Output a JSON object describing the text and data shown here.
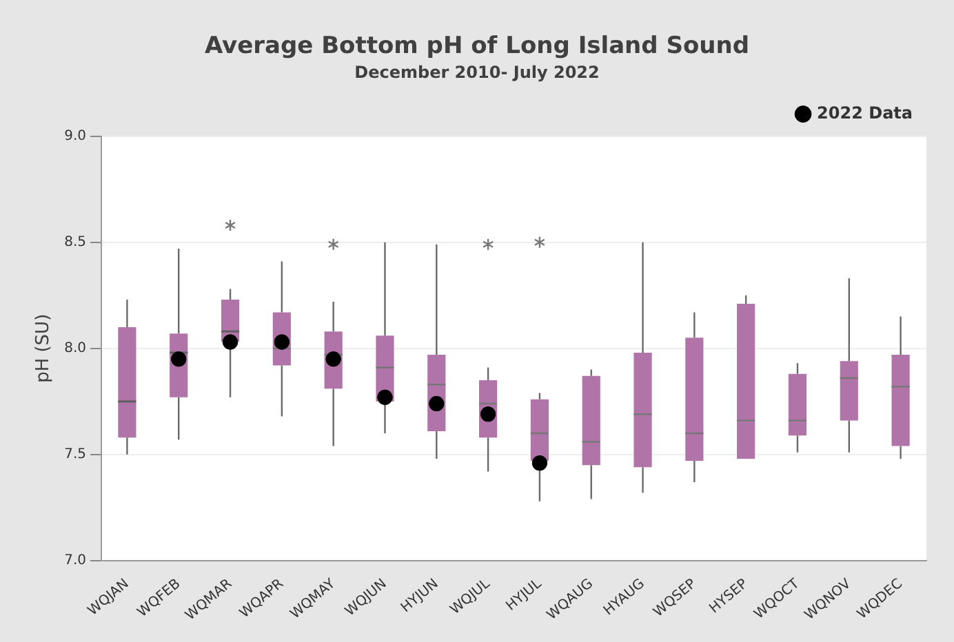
{
  "chart_data": {
    "type": "box",
    "title": "Average Bottom pH of Long Island Sound",
    "subtitle": "December 2010- July 2022",
    "ylabel": "pH (SU)",
    "categories": [
      "WQJAN",
      "WQFEB",
      "WQMAR",
      "WQAPR",
      "WQMAY",
      "WQJUN",
      "HYJUN",
      "WQJUL",
      "HYJUL",
      "WQAUG",
      "HYAUG",
      "WQSEP",
      "HYSEP",
      "WQOCT",
      "WQNOV",
      "WQDEC"
    ],
    "color": "#b074a8",
    "boxes": [
      {
        "low": 7.5,
        "q1": 7.58,
        "median": 7.75,
        "q3": 8.1,
        "high": 8.23
      },
      {
        "low": 7.57,
        "q1": 7.77,
        "median": 7.98,
        "q3": 8.07,
        "high": 8.47
      },
      {
        "low": 7.77,
        "q1": 8.03,
        "median": 8.08,
        "q3": 8.23,
        "high": 8.28,
        "outliers": [
          8.58
        ]
      },
      {
        "low": 7.68,
        "q1": 7.92,
        "median": 8.0,
        "q3": 8.17,
        "high": 8.41
      },
      {
        "low": 7.54,
        "q1": 7.81,
        "median": 7.97,
        "q3": 8.08,
        "high": 8.22,
        "outliers": [
          8.49
        ]
      },
      {
        "low": 7.6,
        "q1": 7.75,
        "median": 7.91,
        "q3": 8.06,
        "high": 8.5
      },
      {
        "low": 7.48,
        "q1": 7.61,
        "median": 7.83,
        "q3": 7.97,
        "high": 8.49
      },
      {
        "low": 7.42,
        "q1": 7.58,
        "median": 7.74,
        "q3": 7.85,
        "high": 7.91,
        "outliers": [
          8.49
        ]
      },
      {
        "low": 7.28,
        "q1": 7.47,
        "median": 7.6,
        "q3": 7.76,
        "high": 7.79,
        "outliers": [
          8.5
        ]
      },
      {
        "low": 7.29,
        "q1": 7.45,
        "median": 7.56,
        "q3": 7.87,
        "high": 7.9
      },
      {
        "low": 7.32,
        "q1": 7.44,
        "median": 7.69,
        "q3": 7.98,
        "high": 8.5
      },
      {
        "low": 7.37,
        "q1": 7.47,
        "median": 7.6,
        "q3": 8.05,
        "high": 8.17
      },
      {
        "low": 7.48,
        "q1": 7.48,
        "median": 7.66,
        "q3": 8.21,
        "high": 8.25
      },
      {
        "low": 7.51,
        "q1": 7.59,
        "median": 7.66,
        "q3": 7.88,
        "high": 7.93
      },
      {
        "low": 7.51,
        "q1": 7.66,
        "median": 7.86,
        "q3": 7.94,
        "high": 8.33
      },
      {
        "low": 7.48,
        "q1": 7.54,
        "median": 7.82,
        "q3": 7.97,
        "high": 8.15
      }
    ],
    "series": [
      {
        "name": "2022 Data",
        "type": "scatter",
        "color": "#000000",
        "x": [
          "WQFEB",
          "WQMAR",
          "WQAPR",
          "WQMAY",
          "WQJUN",
          "HYJUN",
          "WQJUL",
          "HYJUL"
        ],
        "values": [
          7.95,
          8.03,
          8.03,
          7.95,
          7.77,
          7.74,
          7.69,
          7.46
        ]
      }
    ],
    "marker": "circle",
    "ylim": [
      7.0,
      9.0
    ],
    "yticks": [
      {
        "value": 7.0,
        "label": "7.0"
      },
      {
        "value": 7.5,
        "label": "7.5"
      },
      {
        "value": 8.0,
        "label": "8.0"
      },
      {
        "value": 8.5,
        "label": "8.5"
      },
      {
        "value": 9.0,
        "label": "9.0"
      }
    ],
    "grid": "y",
    "legend": "top right"
  }
}
